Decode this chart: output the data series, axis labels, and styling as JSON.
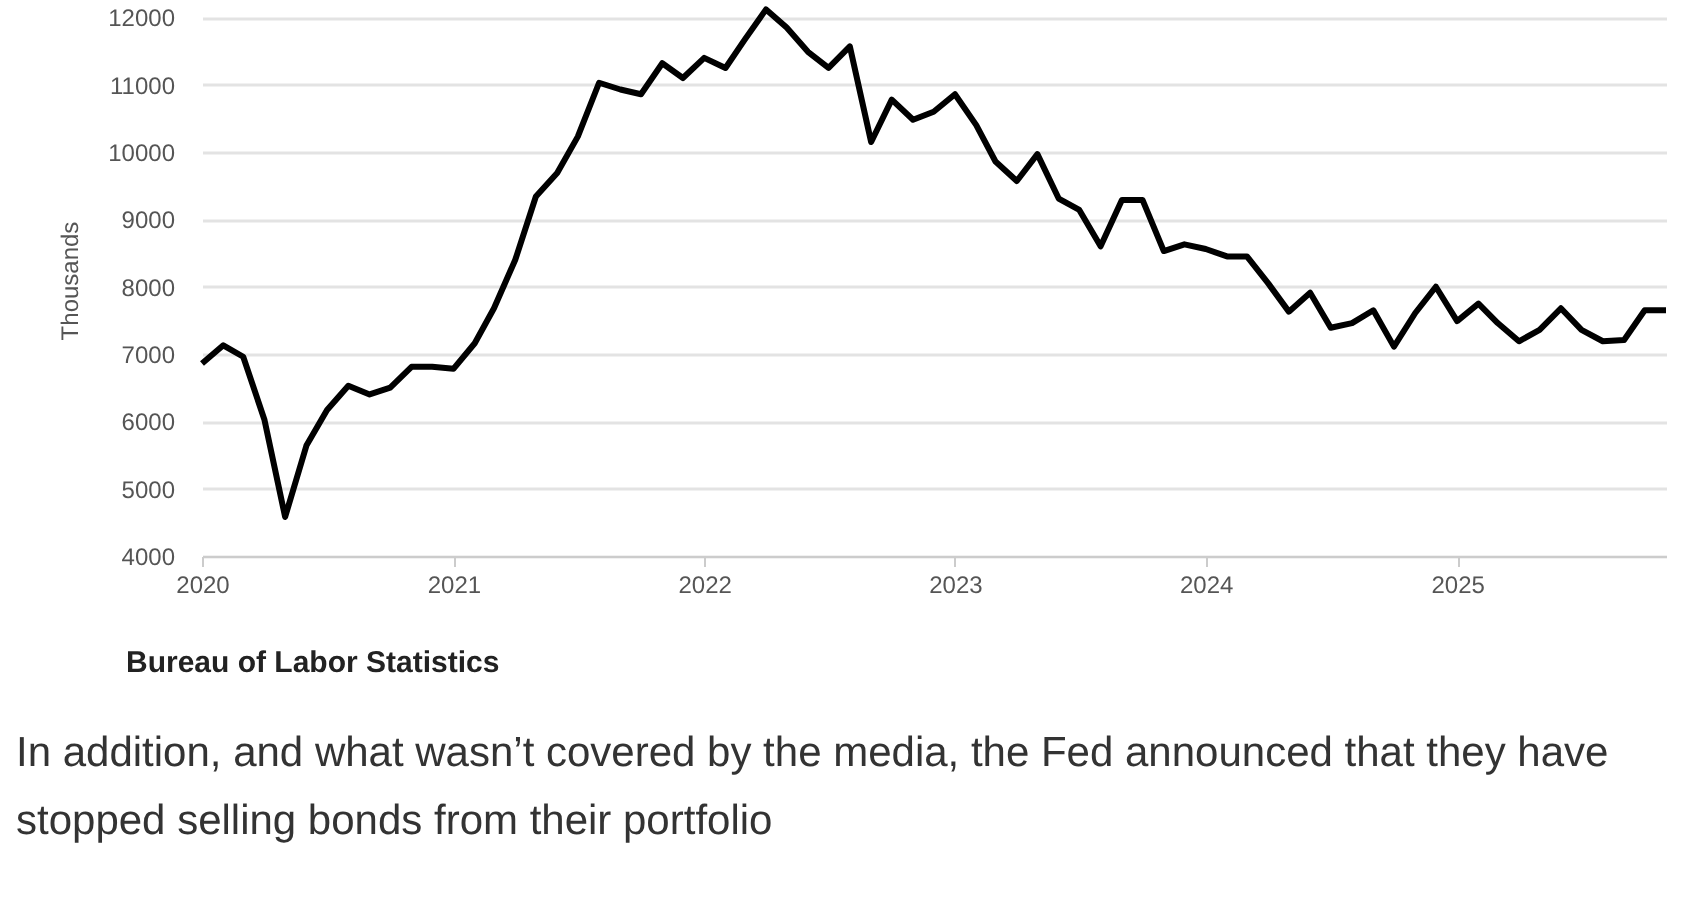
{
  "chart_data": {
    "type": "line",
    "ylabel": "Thousands",
    "x": [
      "2020-01",
      "2020-02",
      "2020-03",
      "2020-04",
      "2020-05",
      "2020-06",
      "2020-07",
      "2020-08",
      "2020-09",
      "2020-10",
      "2020-11",
      "2020-12",
      "2021-01",
      "2021-02",
      "2021-03",
      "2021-04",
      "2021-05",
      "2021-06",
      "2021-07",
      "2021-08",
      "2021-09",
      "2021-10",
      "2021-11",
      "2021-12",
      "2022-01",
      "2022-02",
      "2022-03",
      "2022-04",
      "2022-05",
      "2022-06",
      "2022-07",
      "2022-08",
      "2022-09",
      "2022-10",
      "2022-11",
      "2022-12",
      "2023-01",
      "2023-02",
      "2023-03",
      "2023-04",
      "2023-05",
      "2023-06",
      "2023-07",
      "2023-08",
      "2023-09",
      "2023-10",
      "2023-11",
      "2023-12",
      "2024-01",
      "2024-02",
      "2024-03",
      "2024-04",
      "2024-05",
      "2024-06",
      "2024-07",
      "2024-08",
      "2024-09",
      "2024-10",
      "2024-11",
      "2024-12",
      "2025-01",
      "2025-02",
      "2025-03",
      "2025-04",
      "2025-05",
      "2025-06",
      "2025-07",
      "2025-08",
      "2025-09",
      "2025-10",
      "2025-11"
    ],
    "series": [
      {
        "color": "#000000",
        "values": [
          6860,
          7130,
          6960,
          6020,
          4580,
          5640,
          6170,
          6530,
          6400,
          6500,
          6810,
          6810,
          6780,
          7160,
          7680,
          8400,
          9340,
          9690,
          10230,
          11030,
          10930,
          10860,
          11320,
          11100,
          11400,
          11250,
          11670,
          12120,
          11850,
          11490,
          11250,
          11570,
          10150,
          10780,
          10480,
          10600,
          10860,
          10400,
          9860,
          9570,
          9970,
          9310,
          9140,
          8600,
          9290,
          9290,
          8530,
          8630,
          8560,
          8450,
          8450,
          8050,
          7630,
          7910,
          7390,
          7460,
          7650,
          7110,
          7610,
          8000,
          7490,
          7750,
          7460,
          7190,
          7360,
          7680,
          7360,
          7190,
          7210,
          7650,
          7650
        ]
      }
    ],
    "xlim": [
      "2020-01",
      "2025-11"
    ],
    "xticks": [
      "2020",
      "2021",
      "2022",
      "2023",
      "2024",
      "2025"
    ],
    "ylim": [
      4000,
      12200
    ],
    "yticks": [
      4000,
      5000,
      6000,
      7000,
      8000,
      9000,
      10000,
      11000,
      12000
    ],
    "grid": "y",
    "marker": "none",
    "line_style": "solid",
    "annotations": [
      "Bureau of Labor Statistics",
      "In addition, and what wasn’t covered by the media, the Fed announced that they have stopped selling bonds from their portfolio"
    ]
  }
}
